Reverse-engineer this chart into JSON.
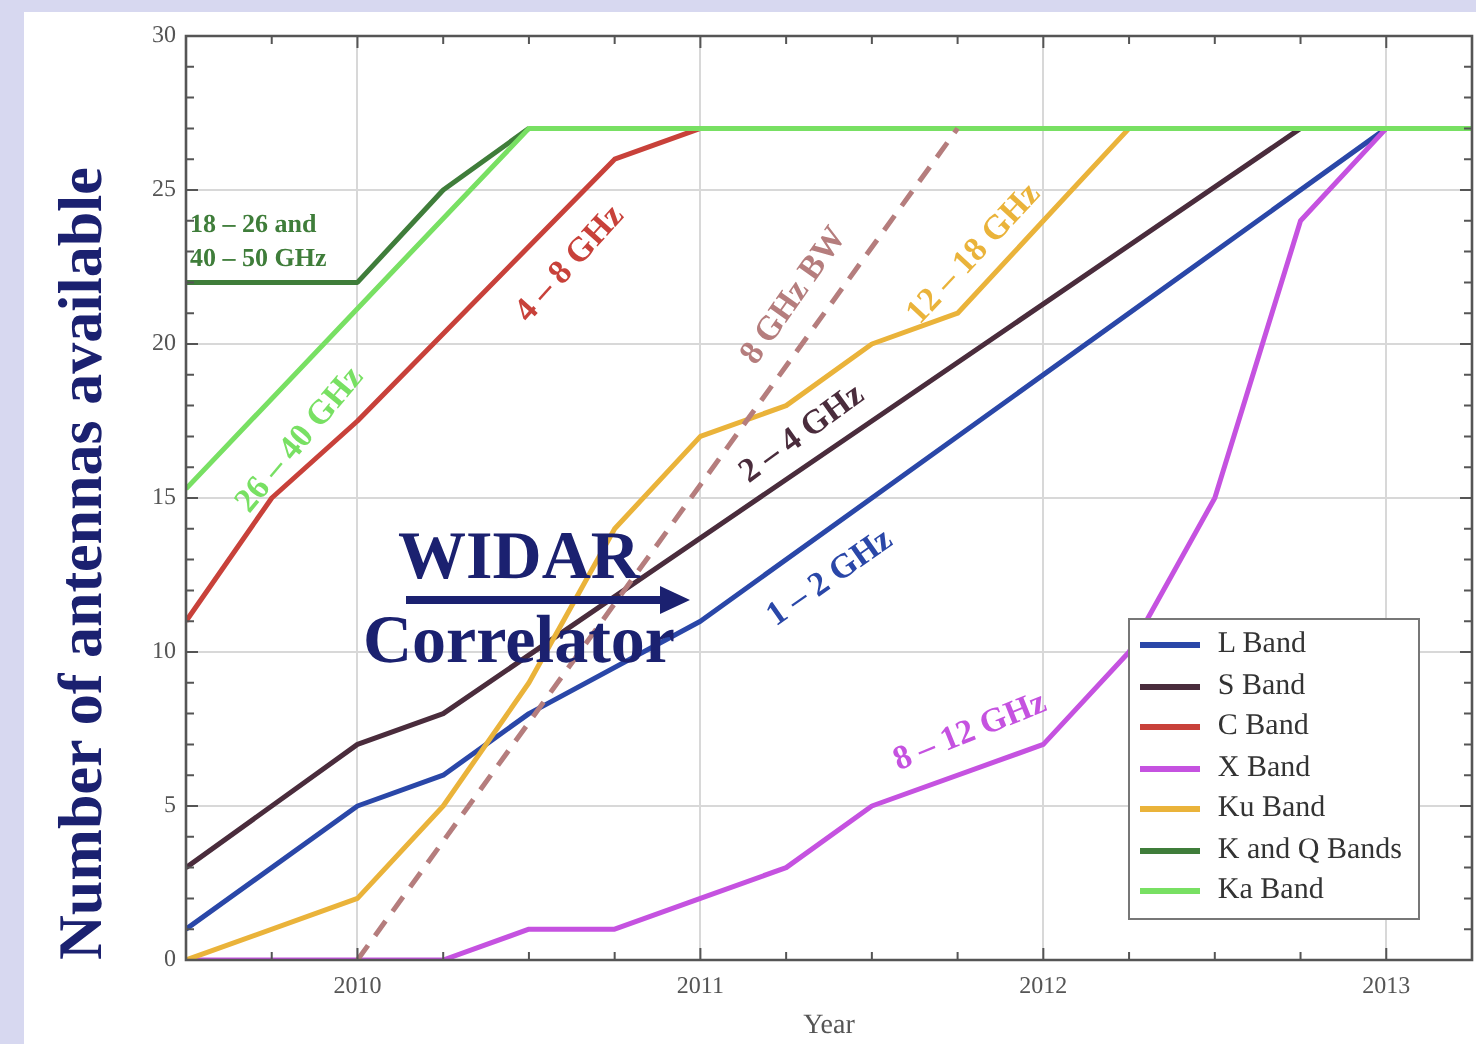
{
  "chart_data": {
    "type": "line",
    "xlabel": "Year",
    "ylabel": "Number of antennas available",
    "xlim": [
      2009.5,
      2013.25
    ],
    "xticks": [
      {
        "value": 2009.75,
        "label": null
      },
      2010,
      {
        "value": 2010.25,
        "label": null
      },
      {
        "value": 2010.5,
        "label": null
      },
      {
        "value": 2010.75,
        "label": null
      },
      2011,
      {
        "value": 2011.25,
        "label": null
      },
      {
        "value": 2011.5,
        "label": null
      },
      {
        "value": 2011.75,
        "label": null
      },
      2012,
      {
        "value": 2012.25,
        "label": null
      },
      {
        "value": 2012.5,
        "label": null
      },
      {
        "value": 2012.75,
        "label": null
      },
      2013
    ],
    "ylim": [
      0,
      30
    ],
    "yticks": [
      0,
      {
        "value": 1,
        "label": null
      },
      {
        "value": 2,
        "label": null
      },
      {
        "value": 3,
        "label": null
      },
      {
        "value": 4,
        "label": null
      },
      5,
      {
        "value": 6,
        "label": null
      },
      {
        "value": 7,
        "label": null
      },
      {
        "value": 8,
        "label": null
      },
      {
        "value": 9,
        "label": null
      },
      10,
      {
        "value": 11,
        "label": null
      },
      {
        "value": 12,
        "label": null
      },
      {
        "value": 13,
        "label": null
      },
      {
        "value": 14,
        "label": null
      },
      15,
      {
        "value": 16,
        "label": null
      },
      {
        "value": 17,
        "label": null
      },
      {
        "value": 18,
        "label": null
      },
      {
        "value": 19,
        "label": null
      },
      20,
      {
        "value": 21,
        "label": null
      },
      {
        "value": 22,
        "label": null
      },
      {
        "value": 23,
        "label": null
      },
      {
        "value": 24,
        "label": null
      },
      25,
      {
        "value": 26,
        "label": null
      },
      {
        "value": 27,
        "label": null
      },
      {
        "value": 28,
        "label": null
      },
      {
        "value": 29,
        "label": null
      },
      30
    ],
    "grid": true,
    "legend": "bottom right",
    "series": [
      {
        "name": "L Band",
        "color": "#2a47a8",
        "x": [
          2009.5,
          2010,
          2010.25,
          2010.5,
          2011,
          2013
        ],
        "values": [
          1,
          5,
          6,
          8,
          11,
          27
        ]
      },
      {
        "name": "S Band",
        "color": "#4a2c3c",
        "x": [
          2009.5,
          2010,
          2010.25,
          2012.75
        ],
        "values": [
          3,
          7,
          8,
          27
        ]
      },
      {
        "name": "C Band",
        "color": "#c8413a",
        "x": [
          2009.5,
          2009.75,
          2010,
          2010.75,
          2011
        ],
        "values": [
          11,
          15,
          17.5,
          26,
          27
        ]
      },
      {
        "name": "X Band",
        "color": "#c552e0",
        "x": [
          2009.5,
          2010.25,
          2010.5,
          2010.75,
          2011,
          2011.25,
          2011.5,
          2012,
          2012.25,
          2012.5,
          2012.75,
          2013
        ],
        "values": [
          0,
          0,
          1,
          1,
          2,
          3,
          5,
          7,
          10,
          15,
          24,
          27
        ]
      },
      {
        "name": "Ku Band",
        "color": "#eab33a",
        "x": [
          2009.5,
          2010,
          2010.25,
          2010.5,
          2010.75,
          2011,
          2011.25,
          2011.5,
          2011.75,
          2012,
          2012.25
        ],
        "values": [
          0,
          2,
          5,
          9,
          14,
          17,
          18,
          20,
          21,
          24,
          27
        ]
      },
      {
        "name": "K and Q Bands",
        "color": "#3f7d3a",
        "x": [
          2009.5,
          2010,
          2010.25,
          2010.5
        ],
        "values": [
          22,
          22,
          25,
          27
        ]
      },
      {
        "name": "Ka Band",
        "color": "#78e063",
        "x": [
          2009.5,
          2010.5,
          2013.25
        ],
        "values": [
          15.3,
          27,
          27
        ]
      },
      {
        "color": "#b57d7d",
        "line_style": "dashed",
        "x": [
          2010,
          2011.75
        ],
        "values": [
          0,
          27
        ]
      }
    ],
    "annotations": [
      "18 – 26 and\n40 – 50 GHz",
      "26 – 40 GHz",
      "4 – 8 GHz",
      "8 GHz BW",
      "12 – 18 GHz",
      "2 – 4 GHz",
      "1 – 2 GHz",
      "8 – 12 GHz",
      "WIDAR Correlator"
    ]
  }
}
